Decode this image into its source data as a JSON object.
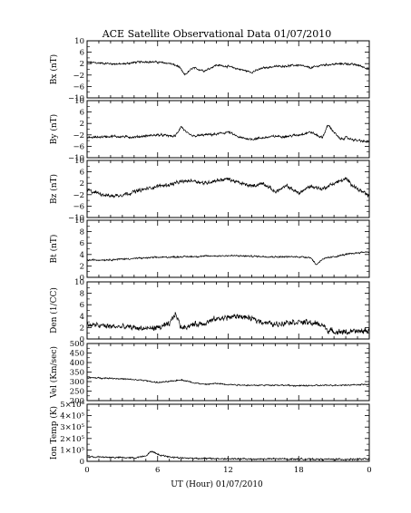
{
  "title": "ACE Satellite Observational Data   01/07/2010",
  "xlabel": "UT (Hour)   01/07/2010",
  "x_ticks": [
    "0",
    "6",
    "12",
    "18",
    "0"
  ],
  "x_tick_hours": [
    0,
    6,
    12,
    18,
    24
  ],
  "xlim": [
    0,
    24
  ],
  "chart_data": [
    {
      "type": "line",
      "ylabel": "Bx (nT)",
      "ylim": [
        -10,
        10
      ],
      "y_ticks": [
        -10,
        -6,
        -2,
        2,
        6,
        10
      ],
      "y_tick_labels": [
        "−10",
        "−6",
        "−2",
        "2",
        "6",
        "10"
      ],
      "x_hours": [
        0,
        1,
        2,
        3,
        4,
        5,
        6,
        7,
        7.8,
        8.3,
        9,
        10,
        11,
        12,
        13,
        14,
        15,
        16,
        17,
        18,
        19,
        20,
        21,
        22,
        23,
        24
      ],
      "values": [
        2.5,
        2.2,
        2.0,
        1.8,
        2.4,
        2.7,
        2.5,
        2.1,
        1.0,
        -2.0,
        0.5,
        -0.5,
        1.5,
        1.0,
        0.0,
        -1.0,
        0.5,
        1.0,
        1.2,
        1.5,
        0.5,
        1.5,
        1.8,
        2.0,
        1.5,
        0.2
      ],
      "noise": 0.5
    },
    {
      "type": "line",
      "ylabel": "By (nT)",
      "ylim": [
        -10,
        10
      ],
      "y_ticks": [
        -10,
        -6,
        -2,
        2,
        6,
        10
      ],
      "y_tick_labels": [
        "−10",
        "−6",
        "−2",
        "2",
        "6",
        "10"
      ],
      "x_hours": [
        0,
        2,
        4,
        6,
        7.5,
        8,
        8.5,
        9,
        10,
        11,
        12,
        12.5,
        13,
        14,
        15,
        16,
        17,
        18,
        19,
        20,
        20.5,
        21,
        21.5,
        22,
        23,
        24
      ],
      "values": [
        -3.0,
        -2.5,
        -2.8,
        -2.0,
        -2.5,
        1.0,
        -1.5,
        -2.5,
        -2.0,
        -1.8,
        -1.0,
        -2.0,
        -3.0,
        -3.5,
        -3.0,
        -2.5,
        -2.5,
        -2.0,
        -1.0,
        -3.0,
        1.5,
        -1.0,
        -3.5,
        -3.0,
        -4.0,
        -4.5
      ],
      "noise": 0.6
    },
    {
      "type": "line",
      "ylabel": "Bz (nT)",
      "ylim": [
        -10,
        10
      ],
      "y_ticks": [
        -10,
        -6,
        -2,
        2,
        6,
        10
      ],
      "y_tick_labels": [
        "−10",
        "−6",
        "−2",
        "2",
        "6",
        "10"
      ],
      "x_hours": [
        0,
        1,
        2,
        3,
        4,
        5,
        6,
        7,
        8,
        9,
        10,
        11,
        12,
        13,
        14,
        15,
        16,
        17,
        18,
        19,
        20,
        21,
        22,
        23,
        24
      ],
      "values": [
        -0.5,
        -1.5,
        -2.5,
        -2.0,
        -1.0,
        0.0,
        1.0,
        1.5,
        2.5,
        3.0,
        2.0,
        3.0,
        3.5,
        2.0,
        1.0,
        2.0,
        -1.0,
        1.0,
        -1.5,
        1.0,
        0.0,
        2.0,
        3.5,
        0.0,
        -2.5
      ],
      "noise": 0.9
    },
    {
      "type": "line",
      "ylabel": "Bt (nT)",
      "ylim": [
        0,
        10
      ],
      "y_ticks": [
        0,
        2,
        4,
        6,
        8,
        10
      ],
      "y_tick_labels": [
        "0",
        "2",
        "4",
        "6",
        "8",
        "10"
      ],
      "x_hours": [
        0,
        2,
        4,
        6,
        8,
        10,
        12,
        14,
        16,
        18,
        19,
        19.5,
        20,
        21,
        22,
        23,
        24
      ],
      "values": [
        3.0,
        3.1,
        3.3,
        3.5,
        3.6,
        3.7,
        3.8,
        3.7,
        3.6,
        3.6,
        3.5,
        2.2,
        3.2,
        3.6,
        4.0,
        4.3,
        4.5
      ],
      "noise": 0.2
    },
    {
      "type": "line",
      "ylabel": "Den (1/CC)",
      "ylim": [
        0,
        10
      ],
      "y_ticks": [
        0,
        2,
        4,
        6,
        8,
        10
      ],
      "y_tick_labels": [
        "0",
        "2",
        "4",
        "6",
        "8",
        "10"
      ],
      "x_hours": [
        0,
        2,
        4,
        5,
        6,
        7,
        7.5,
        8,
        9,
        10,
        11,
        12,
        13,
        14,
        15,
        16,
        17,
        18,
        19,
        20,
        20.5,
        21,
        22,
        23,
        24
      ],
      "values": [
        2.5,
        2.2,
        2.0,
        1.8,
        2.0,
        2.5,
        4.5,
        2.0,
        2.5,
        2.8,
        3.5,
        3.8,
        4.0,
        3.5,
        3.0,
        2.5,
        3.0,
        3.0,
        2.8,
        2.5,
        1.5,
        1.3,
        1.2,
        1.3,
        1.5
      ],
      "noise": 0.7
    },
    {
      "type": "line",
      "ylabel": "Vel (Km/sec)",
      "ylim": [
        200,
        500
      ],
      "y_ticks": [
        200,
        250,
        300,
        350,
        400,
        450,
        500
      ],
      "y_tick_labels": [
        "200",
        "250",
        "300",
        "350",
        "400",
        "450",
        "500"
      ],
      "x_hours": [
        0,
        2,
        4,
        5,
        6,
        7,
        8,
        9,
        10,
        11,
        12,
        14,
        16,
        18,
        20,
        22,
        24
      ],
      "values": [
        320,
        318,
        310,
        305,
        295,
        300,
        310,
        295,
        285,
        290,
        285,
        280,
        282,
        278,
        280,
        282,
        285
      ],
      "noise": 5
    },
    {
      "type": "line",
      "ylabel": "Ion Temp (K)",
      "ylim": [
        0,
        500000
      ],
      "y_ticks": [
        0,
        100000,
        200000,
        300000,
        400000,
        500000
      ],
      "y_tick_labels": [
        "0",
        "1×10⁵",
        "2×10⁵",
        "3×10⁵",
        "4×10⁵",
        "5×10⁵"
      ],
      "x_hours": [
        0,
        2,
        4,
        5,
        5.5,
        6,
        7,
        8,
        10,
        12,
        14,
        16,
        18,
        20,
        22,
        24
      ],
      "values": [
        40000,
        35000,
        30000,
        50000,
        90000,
        60000,
        40000,
        30000,
        25000,
        22000,
        20000,
        22000,
        20000,
        18000,
        18000,
        20000
      ],
      "noise": 10000
    }
  ]
}
